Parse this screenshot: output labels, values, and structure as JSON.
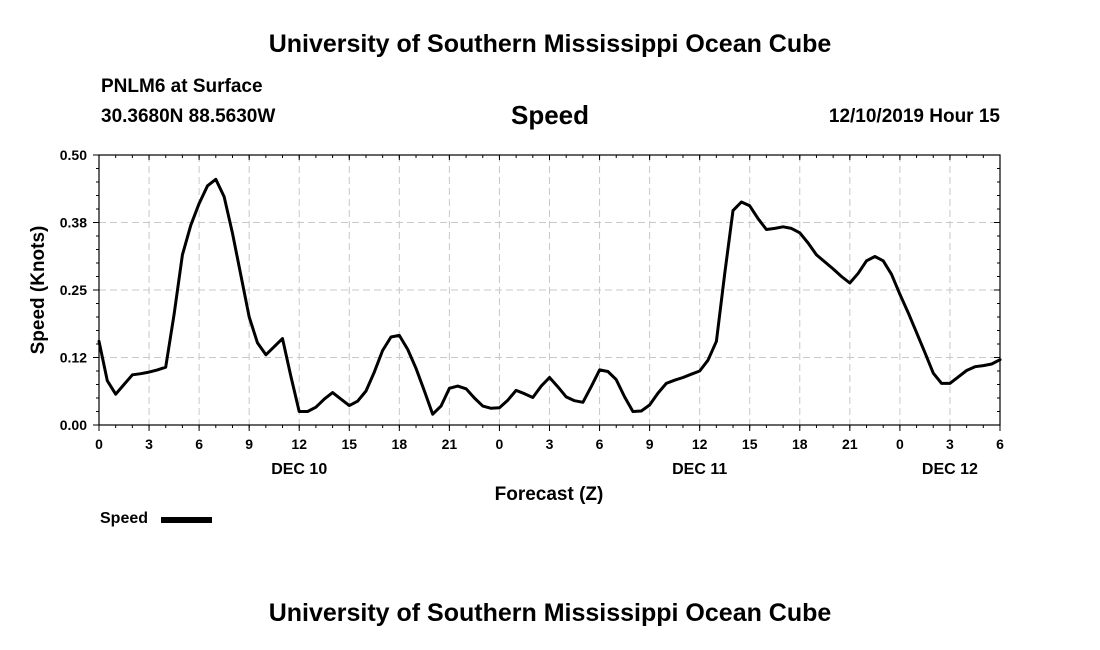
{
  "header": {
    "title": "University of Southern Mississippi Ocean Cube",
    "station": "PNLM6 at Surface",
    "coordinates": "30.3680N 88.5630W",
    "variable": "Speed",
    "datetime": "12/10/2019 Hour 15"
  },
  "footer": {
    "title": "University of Southern Mississippi Ocean Cube"
  },
  "legend": {
    "label": "Speed",
    "color": "#000000"
  },
  "chart_data": {
    "type": "line",
    "title": "Speed",
    "xlabel": "Forecast (Z)",
    "ylabel": "Speed (Knots)",
    "ylim": [
      0,
      0.5
    ],
    "xlim": [
      0,
      54
    ],
    "x_unit": "hours from 00Z DEC 10",
    "grid": true,
    "y_ticks": [
      {
        "value": 0.0,
        "label": "0.00"
      },
      {
        "value": 0.125,
        "label": "0.12"
      },
      {
        "value": 0.25,
        "label": "0.25"
      },
      {
        "value": 0.375,
        "label": "0.38"
      },
      {
        "value": 0.5,
        "label": "0.50"
      }
    ],
    "x_ticks": [
      {
        "value": 0,
        "label": "0"
      },
      {
        "value": 3,
        "label": "3"
      },
      {
        "value": 6,
        "label": "6"
      },
      {
        "value": 9,
        "label": "9"
      },
      {
        "value": 12,
        "label": "12"
      },
      {
        "value": 15,
        "label": "15"
      },
      {
        "value": 18,
        "label": "18"
      },
      {
        "value": 21,
        "label": "21"
      },
      {
        "value": 24,
        "label": "0"
      },
      {
        "value": 27,
        "label": "3"
      },
      {
        "value": 30,
        "label": "6"
      },
      {
        "value": 33,
        "label": "9"
      },
      {
        "value": 36,
        "label": "12"
      },
      {
        "value": 39,
        "label": "15"
      },
      {
        "value": 42,
        "label": "18"
      },
      {
        "value": 45,
        "label": "21"
      },
      {
        "value": 48,
        "label": "0"
      },
      {
        "value": 51,
        "label": "3"
      },
      {
        "value": 54,
        "label": "6"
      }
    ],
    "date_labels": [
      {
        "value": 12,
        "label": "DEC 10"
      },
      {
        "value": 36,
        "label": "DEC 11"
      },
      {
        "value": 51,
        "label": "DEC 12"
      }
    ],
    "series": [
      {
        "name": "Speed",
        "color": "#000000",
        "x": [
          0,
          0.5,
          1,
          1.5,
          2,
          2.5,
          3,
          3.5,
          4,
          4.5,
          5,
          5.5,
          6,
          6.5,
          7,
          7.5,
          8,
          8.5,
          9,
          9.5,
          10,
          10.5,
          11,
          11.5,
          12,
          12.5,
          13,
          13.5,
          14,
          14.5,
          15,
          15.5,
          16,
          16.5,
          17,
          17.5,
          18,
          18.5,
          19,
          19.5,
          20,
          20.5,
          21,
          21.5,
          22,
          22.5,
          23,
          23.5,
          24,
          24.5,
          25,
          25.5,
          26,
          26.5,
          27,
          27.5,
          28,
          28.5,
          29,
          29.5,
          30,
          30.5,
          31,
          31.5,
          32,
          32.5,
          33,
          33.5,
          34,
          34.5,
          35,
          35.5,
          36,
          36.5,
          37,
          37.5,
          38,
          38.5,
          39,
          39.5,
          40,
          40.5,
          41,
          41.5,
          42,
          42.5,
          43,
          43.5,
          44,
          44.5,
          45,
          45.5,
          46,
          46.5,
          47,
          47.5,
          48,
          48.5,
          49,
          49.5,
          50,
          50.5,
          51,
          51.5,
          52,
          52.5,
          53,
          53.5,
          54
        ],
        "values": [
          0.155,
          0.082,
          0.057,
          0.075,
          0.093,
          0.095,
          0.098,
          0.102,
          0.107,
          0.205,
          0.315,
          0.37,
          0.41,
          0.443,
          0.455,
          0.423,
          0.355,
          0.278,
          0.2,
          0.152,
          0.13,
          0.145,
          0.16,
          0.09,
          0.025,
          0.025,
          0.033,
          0.048,
          0.06,
          0.048,
          0.036,
          0.044,
          0.063,
          0.098,
          0.138,
          0.163,
          0.166,
          0.14,
          0.105,
          0.063,
          0.02,
          0.035,
          0.068,
          0.072,
          0.067,
          0.05,
          0.035,
          0.031,
          0.032,
          0.046,
          0.064,
          0.058,
          0.051,
          0.072,
          0.088,
          0.071,
          0.052,
          0.045,
          0.042,
          0.071,
          0.102,
          0.099,
          0.084,
          0.052,
          0.025,
          0.026,
          0.037,
          0.059,
          0.077,
          0.083,
          0.088,
          0.094,
          0.1,
          0.12,
          0.155,
          0.28,
          0.397,
          0.413,
          0.406,
          0.382,
          0.362,
          0.364,
          0.367,
          0.364,
          0.356,
          0.337,
          0.315,
          0.302,
          0.289,
          0.275,
          0.263,
          0.281,
          0.304,
          0.312,
          0.304,
          0.279,
          0.242,
          0.208,
          0.171,
          0.134,
          0.096,
          0.077,
          0.077,
          0.089,
          0.101,
          0.108,
          0.11,
          0.113,
          0.121
        ]
      }
    ]
  }
}
